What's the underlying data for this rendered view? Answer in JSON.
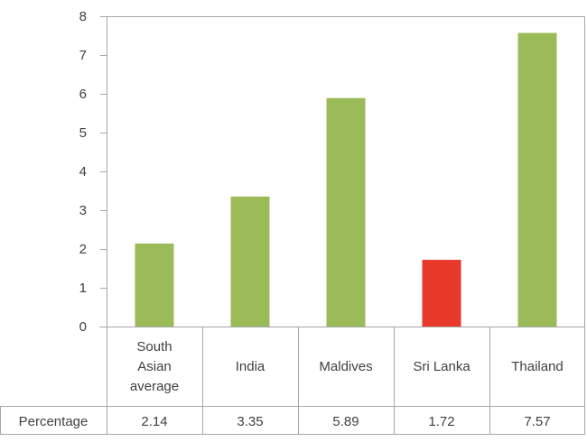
{
  "chart_data": {
    "type": "bar",
    "categories": [
      [
        "South",
        "Asian",
        "average"
      ],
      [
        "India"
      ],
      [
        "Maldives"
      ],
      [
        "Sri Lanka"
      ],
      [
        "Thailand"
      ]
    ],
    "values": [
      2.14,
      3.35,
      5.89,
      1.72,
      7.57
    ],
    "bar_colors": [
      "#9bbb59",
      "#9bbb59",
      "#9bbb59",
      "#e8392a",
      "#9bbb59"
    ],
    "ylim": [
      0,
      8
    ],
    "yticks": [
      "0",
      "1",
      "2",
      "3",
      "4",
      "5",
      "6",
      "7",
      "8"
    ],
    "grid": false,
    "data_table": {
      "row_label": "Percentage",
      "values": [
        "2.14",
        "3.35",
        "5.89",
        "1.72",
        "7.57"
      ]
    }
  }
}
